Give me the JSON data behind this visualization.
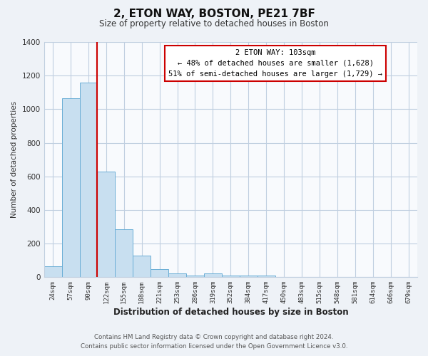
{
  "title": "2, ETON WAY, BOSTON, PE21 7BF",
  "subtitle": "Size of property relative to detached houses in Boston",
  "xlabel": "Distribution of detached houses by size in Boston",
  "ylabel": "Number of detached properties",
  "bar_labels": [
    "24sqm",
    "57sqm",
    "90sqm",
    "122sqm",
    "155sqm",
    "188sqm",
    "221sqm",
    "253sqm",
    "286sqm",
    "319sqm",
    "352sqm",
    "384sqm",
    "417sqm",
    "450sqm",
    "483sqm",
    "515sqm",
    "548sqm",
    "581sqm",
    "614sqm",
    "646sqm",
    "679sqm"
  ],
  "bar_values": [
    65,
    1065,
    1160,
    630,
    285,
    130,
    48,
    22,
    12,
    22,
    12,
    12,
    12,
    0,
    0,
    0,
    0,
    0,
    0,
    0,
    0
  ],
  "bar_color": "#c8dff0",
  "bar_edge_color": "#6aaed6",
  "vline_index": 2.5,
  "vline_color": "#cc0000",
  "annotation_text": "2 ETON WAY: 103sqm\n← 48% of detached houses are smaller (1,628)\n51% of semi-detached houses are larger (1,729) →",
  "annotation_box_color": "#ffffff",
  "annotation_box_edge_color": "#cc0000",
  "ylim": [
    0,
    1400
  ],
  "yticks": [
    0,
    200,
    400,
    600,
    800,
    1000,
    1200,
    1400
  ],
  "footer_line1": "Contains HM Land Registry data © Crown copyright and database right 2024.",
  "footer_line2": "Contains public sector information licensed under the Open Government Licence v3.0.",
  "bg_color": "#eef2f7",
  "plot_bg_color": "#f8fafd",
  "grid_color": "#c0cfe0"
}
